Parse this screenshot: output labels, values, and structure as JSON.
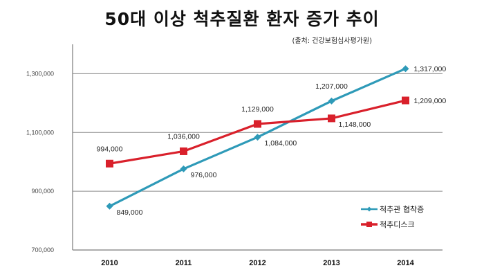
{
  "chart_data": {
    "type": "line",
    "title": "50대 이상 척추질환 환자 증가 추이",
    "subtitle": "(출처: 건강보험심사평가원)",
    "xlabel": "",
    "ylabel": "",
    "categories": [
      "2010",
      "2011",
      "2012",
      "2013",
      "2014"
    ],
    "ylim": [
      700000,
      1400000
    ],
    "yticks": [
      700000,
      900000,
      1100000,
      1300000
    ],
    "ytick_labels": [
      "700,000",
      "900,000",
      "1,100,000",
      "1,300,000"
    ],
    "grid": true,
    "legend_position": "bottom-right",
    "series": [
      {
        "name": "척추관 협착증",
        "color": "#2e9ab8",
        "marker": "diamond",
        "values": [
          849000,
          976000,
          1084000,
          1207000,
          1317000
        ],
        "labels": [
          "849,000",
          "976,000",
          "1,084,000",
          "1,207,000",
          "1,317,000"
        ],
        "label_positions": [
          "right-below",
          "right-below",
          "right-below",
          "above",
          "right"
        ]
      },
      {
        "name": "척추디스크",
        "color": "#d9202b",
        "marker": "square",
        "values": [
          994000,
          1036000,
          1129000,
          1148000,
          1209000
        ],
        "labels": [
          "994,000",
          "1,036,000",
          "1,129,000",
          "1,148,000",
          "1,209,000"
        ],
        "label_positions": [
          "above",
          "above",
          "above",
          "right-below",
          "right"
        ]
      }
    ]
  }
}
